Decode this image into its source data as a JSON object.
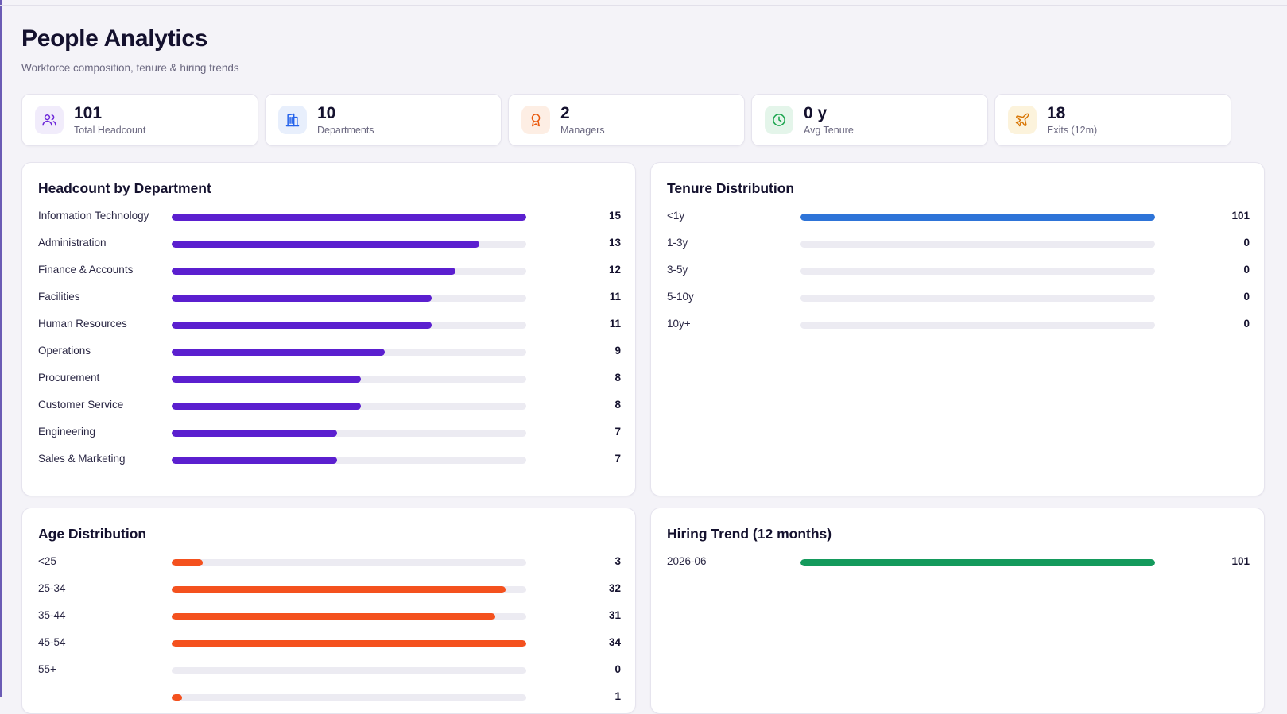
{
  "header": {
    "title": "People Analytics",
    "subtitle": "Workforce composition, tenure & hiring trends"
  },
  "kpis": [
    {
      "value": "101",
      "label": "Total Headcount",
      "icon": "users-icon",
      "color": "#6d28d9",
      "bg": "#f1ecfb"
    },
    {
      "value": "10",
      "label": "Departments",
      "icon": "building-icon",
      "color": "#2563eb",
      "bg": "#e8effc"
    },
    {
      "value": "2",
      "label": "Managers",
      "icon": "award-icon",
      "color": "#ea580c",
      "bg": "#fdeee4"
    },
    {
      "value": "0 y",
      "label": "Avg Tenure",
      "icon": "clock-icon",
      "color": "#16a34a",
      "bg": "#e4f5ea"
    },
    {
      "value": "18",
      "label": "Exits (12m)",
      "icon": "plane-icon",
      "color": "#d97706",
      "bg": "#fcf3dc"
    }
  ],
  "panels": {
    "department": {
      "title": "Headcount by Department",
      "color": "#5b1fcf",
      "max": 15,
      "rows": [
        {
          "label": "Information Technology",
          "value": 15
        },
        {
          "label": "Administration",
          "value": 13
        },
        {
          "label": "Finance & Accounts",
          "value": 12
        },
        {
          "label": "Facilities",
          "value": 11
        },
        {
          "label": "Human Resources",
          "value": 11
        },
        {
          "label": "Operations",
          "value": 9
        },
        {
          "label": "Procurement",
          "value": 8
        },
        {
          "label": "Customer Service",
          "value": 8
        },
        {
          "label": "Engineering",
          "value": 7
        },
        {
          "label": "Sales & Marketing",
          "value": 7
        }
      ]
    },
    "tenure": {
      "title": "Tenure Distribution",
      "color": "#2e74d8",
      "max": 101,
      "rows": [
        {
          "label": "<1y",
          "value": 101
        },
        {
          "label": "1-3y",
          "value": 0
        },
        {
          "label": "3-5y",
          "value": 0
        },
        {
          "label": "5-10y",
          "value": 0
        },
        {
          "label": "10y+",
          "value": 0
        }
      ]
    },
    "age": {
      "title": "Age Distribution",
      "color": "#f4511e",
      "max": 34,
      "rows": [
        {
          "label": "<25",
          "value": 3
        },
        {
          "label": "25-34",
          "value": 32
        },
        {
          "label": "35-44",
          "value": 31
        },
        {
          "label": "45-54",
          "value": 34
        },
        {
          "label": "55+",
          "value": 0
        },
        {
          "label": "",
          "value": 1
        }
      ]
    },
    "hiring": {
      "title": "Hiring Trend (12 months)",
      "color": "#149a5c",
      "max": 101,
      "rows": [
        {
          "label": "2026-06",
          "value": 101
        }
      ]
    }
  }
}
